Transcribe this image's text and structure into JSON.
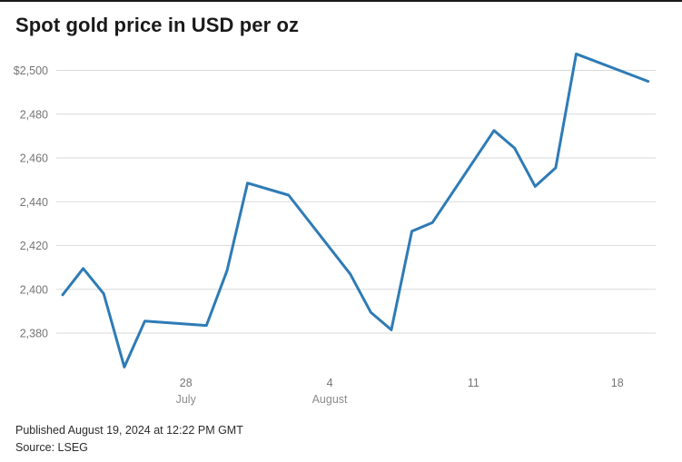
{
  "title": "Spot gold price in USD per oz",
  "footer": {
    "published": "Published August 19, 2024 at 12:22 PM GMT",
    "source": "Source: LSEG"
  },
  "colors": {
    "line": "#2e7bb6",
    "grid": "#dadada",
    "axis_text": "#757575",
    "month_text": "#8c8c8c",
    "title_text": "#1a1a1a",
    "footer_text": "#2b2b2b",
    "top_border": "#1a1a1a",
    "background": "#ffffff"
  },
  "chart_data": {
    "type": "line",
    "title": "Spot gold price in USD per oz",
    "series_name": "Spot gold price (USD per oz)",
    "xlabel": "",
    "ylabel": "USD per oz",
    "x_start": "July 22, 2024",
    "x_end": "August 19, 2024",
    "ylim": [
      2360,
      2510
    ],
    "grid": true,
    "legend": false,
    "y_ticks": [
      {
        "value": 2500,
        "label": "$2,500"
      },
      {
        "value": 2480,
        "label": "2,480"
      },
      {
        "value": 2460,
        "label": "2,460"
      },
      {
        "value": 2440,
        "label": "2,440"
      },
      {
        "value": 2420,
        "label": "2,420"
      },
      {
        "value": 2400,
        "label": "2,400"
      },
      {
        "value": 2380,
        "label": "2,380"
      }
    ],
    "x_ticks": [
      {
        "day_offset": 6,
        "day": "28",
        "month": "July"
      },
      {
        "day_offset": 13,
        "day": "4",
        "month": "August"
      },
      {
        "day_offset": 20,
        "day": "11",
        "month": ""
      },
      {
        "day_offset": 27,
        "day": "18",
        "month": ""
      }
    ],
    "points": [
      {
        "date": "Jul 22",
        "day_offset": 0,
        "value": 2397.5
      },
      {
        "date": "Jul 23",
        "day_offset": 1,
        "value": 2409.5
      },
      {
        "date": "Jul 24",
        "day_offset": 2,
        "value": 2398.0
      },
      {
        "date": "Jul 25",
        "day_offset": 3,
        "value": 2364.5
      },
      {
        "date": "Jul 26",
        "day_offset": 4,
        "value": 2385.5
      },
      {
        "date": "Jul 29",
        "day_offset": 7,
        "value": 2383.5
      },
      {
        "date": "Jul 30",
        "day_offset": 8,
        "value": 2408.5
      },
      {
        "date": "Jul 31",
        "day_offset": 9,
        "value": 2448.5
      },
      {
        "date": "Aug 2",
        "day_offset": 11,
        "value": 2443.0
      },
      {
        "date": "Aug 5",
        "day_offset": 14,
        "value": 2407.0
      },
      {
        "date": "Aug 6",
        "day_offset": 15,
        "value": 2389.5
      },
      {
        "date": "Aug 7",
        "day_offset": 16,
        "value": 2381.5
      },
      {
        "date": "Aug 8",
        "day_offset": 17,
        "value": 2426.5
      },
      {
        "date": "Aug 9",
        "day_offset": 18,
        "value": 2430.5
      },
      {
        "date": "Aug 12",
        "day_offset": 21,
        "value": 2472.5
      },
      {
        "date": "Aug 13",
        "day_offset": 22,
        "value": 2464.5
      },
      {
        "date": "Aug 14",
        "day_offset": 23,
        "value": 2447.0
      },
      {
        "date": "Aug 15",
        "day_offset": 24,
        "value": 2455.5
      },
      {
        "date": "Aug 16",
        "day_offset": 25,
        "value": 2507.5
      },
      {
        "date": "Aug 19",
        "day_offset": 28.5,
        "value": 2495.0
      }
    ]
  }
}
